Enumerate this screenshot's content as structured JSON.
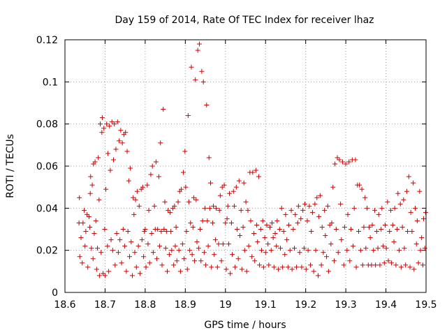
{
  "chart_data": {
    "type": "scatter",
    "title": "Day 159 of 2014, Rate Of TEC Index for receiver lhaz",
    "xlabel": "GPS time / hours",
    "ylabel": "ROTI / TECUs",
    "xlim": [
      18.6,
      19.5
    ],
    "ylim": [
      0,
      0.12
    ],
    "x_ticks": [
      "18.6",
      "18.7",
      "18.8",
      "18.9",
      "19",
      "19.1",
      "19.2",
      "19.3",
      "19.4",
      "19.5"
    ],
    "y_ticks": [
      "0",
      "0.02",
      "0.04",
      "0.06",
      "0.08",
      "0.1",
      "0.12"
    ],
    "grid": true,
    "marker": "+",
    "color": "#cc0000",
    "points": [
      [
        18.635,
        0.033
      ],
      [
        18.636,
        0.045
      ],
      [
        18.637,
        0.017
      ],
      [
        18.64,
        0.026
      ],
      [
        18.643,
        0.014
      ],
      [
        18.645,
        0.033
      ],
      [
        18.648,
        0.039
      ],
      [
        18.65,
        0.022
      ],
      [
        18.652,
        0.029
      ],
      [
        18.655,
        0.037
      ],
      [
        18.657,
        0.012
      ],
      [
        18.66,
        0.036
      ],
      [
        18.662,
        0.031
      ],
      [
        18.663,
        0.047
      ],
      [
        18.664,
        0.055
      ],
      [
        18.666,
        0.021
      ],
      [
        18.668,
        0.051
      ],
      [
        18.67,
        0.016
      ],
      [
        18.671,
        0.061
      ],
      [
        18.673,
        0.028
      ],
      [
        18.675,
        0.062
      ],
      [
        18.677,
        0.034
      ],
      [
        18.679,
        0.011
      ],
      [
        18.681,
        0.021
      ],
      [
        18.683,
        0.064
      ],
      [
        18.685,
        0.044
      ],
      [
        18.686,
        0.008
      ],
      [
        18.688,
        0.08
      ],
      [
        18.69,
        0.019
      ],
      [
        18.692,
        0.076
      ],
      [
        18.693,
        0.083
      ],
      [
        18.695,
        0.009
      ],
      [
        18.697,
        0.078
      ],
      [
        18.699,
        0.03
      ],
      [
        18.7,
        0.008
      ],
      [
        18.702,
        0.049
      ],
      [
        18.704,
        0.08
      ],
      [
        18.706,
        0.022
      ],
      [
        18.707,
        0.066
      ],
      [
        18.709,
        0.01
      ],
      [
        18.711,
        0.079
      ],
      [
        18.713,
        0.058
      ],
      [
        18.715,
        0.025
      ],
      [
        18.717,
        0.081
      ],
      [
        18.719,
        0.02
      ],
      [
        18.721,
        0.063
      ],
      [
        18.723,
        0.08
      ],
      [
        18.725,
        0.013
      ],
      [
        18.727,
        0.068
      ],
      [
        18.729,
        0.028
      ],
      [
        18.731,
        0.081
      ],
      [
        18.733,
        0.019
      ],
      [
        18.735,
        0.072
      ],
      [
        18.737,
        0.025
      ],
      [
        18.739,
        0.077
      ],
      [
        18.741,
        0.014
      ],
      [
        18.743,
        0.071
      ],
      [
        18.745,
        0.03
      ],
      [
        18.747,
        0.075
      ],
      [
        18.749,
        0.022
      ],
      [
        18.751,
        0.076
      ],
      [
        18.753,
        0.01
      ],
      [
        18.755,
        0.067
      ],
      [
        18.757,
        0.029
      ],
      [
        18.759,
        0.053
      ],
      [
        18.761,
        0.017
      ],
      [
        18.763,
        0.059
      ],
      [
        18.765,
        0.024
      ],
      [
        18.768,
        0.008
      ],
      [
        18.77,
        0.045
      ],
      [
        18.772,
        0.037
      ],
      [
        18.774,
        0.019
      ],
      [
        18.776,
        0.044
      ],
      [
        18.778,
        0.012
      ],
      [
        18.78,
        0.048
      ],
      [
        18.783,
        0.022
      ],
      [
        18.785,
        0.041
      ],
      [
        18.787,
        0.009
      ],
      [
        18.79,
        0.049
      ],
      [
        18.792,
        0.025
      ],
      [
        18.794,
        0.05
      ],
      [
        18.796,
        0.017
      ],
      [
        18.798,
        0.029
      ],
      [
        18.8,
        0.03
      ],
      [
        18.802,
        0.012
      ],
      [
        18.805,
        0.051
      ],
      [
        18.807,
        0.023
      ],
      [
        18.809,
        0.039
      ],
      [
        18.811,
        0.014
      ],
      [
        18.814,
        0.056
      ],
      [
        18.816,
        0.028
      ],
      [
        18.818,
        0.06
      ],
      [
        18.82,
        0.019
      ],
      [
        18.823,
        0.041
      ],
      [
        18.825,
        0.03
      ],
      [
        18.827,
        0.062
      ],
      [
        18.829,
        0.016
      ],
      [
        18.831,
        0.03
      ],
      [
        18.834,
        0.055
      ],
      [
        18.836,
        0.022
      ],
      [
        18.838,
        0.071
      ],
      [
        18.84,
        0.029
      ],
      [
        18.842,
        0.013
      ],
      [
        18.845,
        0.087
      ],
      [
        18.847,
        0.03
      ],
      [
        18.849,
        0.043
      ],
      [
        18.851,
        0.021
      ],
      [
        18.853,
        0.029
      ],
      [
        18.855,
        0.01
      ],
      [
        18.857,
        0.039
      ],
      [
        18.86,
        0.018
      ],
      [
        18.862,
        0.038
      ],
      [
        18.864,
        0.029
      ],
      [
        18.866,
        0.02
      ],
      [
        18.869,
        0.04
      ],
      [
        18.871,
        0.013
      ],
      [
        18.873,
        0.041
      ],
      [
        18.875,
        0.022
      ],
      [
        18.877,
        0.031
      ],
      [
        18.879,
        0.015
      ],
      [
        18.882,
        0.043
      ],
      [
        18.884,
        0.02
      ],
      [
        18.886,
        0.048
      ],
      [
        18.888,
        0.01
      ],
      [
        18.89,
        0.049
      ],
      [
        18.893,
        0.023
      ],
      [
        18.895,
        0.057
      ],
      [
        18.897,
        0.016
      ],
      [
        18.899,
        0.067
      ],
      [
        18.901,
        0.05
      ],
      [
        18.903,
        0.029
      ],
      [
        18.905,
        0.011
      ],
      [
        18.907,
        0.084
      ],
      [
        18.909,
        0.043
      ],
      [
        18.911,
        0.02
      ],
      [
        18.913,
        0.033
      ],
      [
        18.915,
        0.107
      ],
      [
        18.917,
        0.018
      ],
      [
        18.919,
        0.031
      ],
      [
        18.921,
        0.045
      ],
      [
        18.923,
        0.015
      ],
      [
        18.925,
        0.101
      ],
      [
        18.927,
        0.044
      ],
      [
        18.929,
        0.024
      ],
      [
        18.931,
        0.115
      ],
      [
        18.933,
        0.021
      ],
      [
        18.935,
        0.118
      ],
      [
        18.937,
        0.03
      ],
      [
        18.939,
        0.015
      ],
      [
        18.941,
        0.105
      ],
      [
        18.943,
        0.034
      ],
      [
        18.945,
        0.1
      ],
      [
        18.947,
        0.019
      ],
      [
        18.949,
        0.04
      ],
      [
        18.951,
        0.013
      ],
      [
        18.953,
        0.089
      ],
      [
        18.955,
        0.034
      ],
      [
        18.957,
        0.022
      ],
      [
        18.959,
        0.064
      ],
      [
        18.961,
        0.04
      ],
      [
        18.963,
        0.052
      ],
      [
        18.965,
        0.012
      ],
      [
        18.968,
        0.033
      ],
      [
        18.97,
        0.041
      ],
      [
        18.972,
        0.018
      ],
      [
        18.975,
        0.025
      ],
      [
        18.977,
        0.04
      ],
      [
        18.98,
        0.012
      ],
      [
        18.983,
        0.023
      ],
      [
        18.985,
        0.039
      ],
      [
        18.987,
        0.046
      ],
      [
        18.99,
        0.015
      ],
      [
        18.992,
        0.05
      ],
      [
        18.994,
        0.023
      ],
      [
        18.997,
        0.051
      ],
      [
        19.0,
        0.033
      ],
      [
        19.002,
        0.011
      ],
      [
        19.004,
        0.035
      ],
      [
        19.006,
        0.041
      ],
      [
        19.008,
        0.023
      ],
      [
        19.01,
        0.047
      ],
      [
        19.012,
        0.009
      ],
      [
        19.015,
        0.033
      ],
      [
        19.017,
        0.018
      ],
      [
        19.02,
        0.048
      ],
      [
        19.022,
        0.041
      ],
      [
        19.024,
        0.012
      ],
      [
        19.027,
        0.05
      ],
      [
        19.029,
        0.03
      ],
      [
        19.032,
        0.016
      ],
      [
        19.034,
        0.053
      ],
      [
        19.036,
        0.027
      ],
      [
        19.039,
        0.039
      ],
      [
        19.041,
        0.011
      ],
      [
        19.044,
        0.031
      ],
      [
        19.046,
        0.052
      ],
      [
        19.048,
        0.02
      ],
      [
        19.051,
        0.043
      ],
      [
        19.053,
        0.01
      ],
      [
        19.056,
        0.039
      ],
      [
        19.058,
        0.022
      ],
      [
        19.061,
        0.057
      ],
      [
        19.063,
        0.034
      ],
      [
        19.066,
        0.017
      ],
      [
        19.068,
        0.057
      ],
      [
        19.071,
        0.028
      ],
      [
        19.073,
        0.015
      ],
      [
        19.076,
        0.058
      ],
      [
        19.078,
        0.032
      ],
      [
        19.08,
        0.024
      ],
      [
        19.083,
        0.055
      ],
      [
        19.085,
        0.013
      ],
      [
        19.088,
        0.03
      ],
      [
        19.09,
        0.02
      ],
      [
        19.093,
        0.034
      ],
      [
        19.095,
        0.012
      ],
      [
        19.098,
        0.026
      ],
      [
        19.1,
        0.019
      ],
      [
        19.103,
        0.032
      ],
      [
        19.106,
        0.023
      ],
      [
        19.108,
        0.013
      ],
      [
        19.111,
        0.031
      ],
      [
        19.114,
        0.02
      ],
      [
        19.116,
        0.033
      ],
      [
        19.119,
        0.026
      ],
      [
        19.121,
        0.012
      ],
      [
        19.124,
        0.028
      ],
      [
        19.127,
        0.022
      ],
      [
        19.129,
        0.034
      ],
      [
        19.132,
        0.011
      ],
      [
        19.135,
        0.03
      ],
      [
        19.137,
        0.021
      ],
      [
        19.14,
        0.04
      ],
      [
        19.142,
        0.012
      ],
      [
        19.145,
        0.029
      ],
      [
        19.148,
        0.018
      ],
      [
        19.15,
        0.037
      ],
      [
        19.153,
        0.025
      ],
      [
        19.156,
        0.012
      ],
      [
        19.158,
        0.032
      ],
      [
        19.161,
        0.02
      ],
      [
        19.164,
        0.039
      ],
      [
        19.166,
        0.011
      ],
      [
        19.169,
        0.03
      ],
      [
        19.172,
        0.021
      ],
      [
        19.174,
        0.037
      ],
      [
        19.177,
        0.012
      ],
      [
        19.18,
        0.033
      ],
      [
        19.182,
        0.041
      ],
      [
        19.185,
        0.019
      ],
      [
        19.188,
        0.035
      ],
      [
        19.19,
        0.012
      ],
      [
        19.193,
        0.039
      ],
      [
        19.196,
        0.021
      ],
      [
        19.198,
        0.042
      ],
      [
        19.201,
        0.011
      ],
      [
        19.204,
        0.034
      ],
      [
        19.206,
        0.02
      ],
      [
        19.209,
        0.041
      ],
      [
        19.212,
        0.013
      ],
      [
        19.214,
        0.029
      ],
      [
        19.217,
        0.038
      ],
      [
        19.22,
        0.01
      ],
      [
        19.223,
        0.042
      ],
      [
        19.225,
        0.02
      ],
      [
        19.228,
        0.045
      ],
      [
        19.231,
        0.008
      ],
      [
        19.233,
        0.036
      ],
      [
        19.236,
        0.046
      ],
      [
        19.239,
        0.013
      ],
      [
        19.241,
        0.031
      ],
      [
        19.244,
        0.019
      ],
      [
        19.247,
        0.039
      ],
      [
        19.249,
        0.027
      ],
      [
        19.252,
        0.017
      ],
      [
        19.255,
        0.041
      ],
      [
        19.257,
        0.01
      ],
      [
        19.26,
        0.032
      ],
      [
        19.263,
        0.023
      ],
      [
        19.265,
        0.033
      ],
      [
        19.268,
        0.05
      ],
      [
        19.271,
        0.015
      ],
      [
        19.273,
        0.061
      ],
      [
        19.276,
        0.03
      ],
      [
        19.279,
        0.064
      ],
      [
        19.281,
        0.019
      ],
      [
        19.284,
        0.063
      ],
      [
        19.287,
        0.042
      ],
      [
        19.289,
        0.025
      ],
      [
        19.292,
        0.062
      ],
      [
        19.295,
        0.013
      ],
      [
        19.297,
        0.031
      ],
      [
        19.3,
        0.061
      ],
      [
        19.303,
        0.02
      ],
      [
        19.305,
        0.037
      ],
      [
        19.308,
        0.062
      ],
      [
        19.31,
        0.015
      ],
      [
        19.313,
        0.03
      ],
      [
        19.316,
        0.063
      ],
      [
        19.318,
        0.022
      ],
      [
        19.321,
        0.04
      ],
      [
        19.324,
        0.063
      ],
      [
        19.326,
        0.012
      ],
      [
        19.329,
        0.051
      ],
      [
        19.332,
        0.029
      ],
      [
        19.334,
        0.051
      ],
      [
        19.337,
        0.02
      ],
      [
        19.34,
        0.049
      ],
      [
        19.342,
        0.013
      ],
      [
        19.345,
        0.031
      ],
      [
        19.348,
        0.045
      ],
      [
        19.35,
        0.021
      ],
      [
        19.353,
        0.04
      ],
      [
        19.356,
        0.013
      ],
      [
        19.358,
        0.031
      ],
      [
        19.361,
        0.026
      ],
      [
        19.364,
        0.013
      ],
      [
        19.366,
        0.032
      ],
      [
        19.369,
        0.02
      ],
      [
        19.372,
        0.039
      ],
      [
        19.374,
        0.013
      ],
      [
        19.377,
        0.029
      ],
      [
        19.38,
        0.021
      ],
      [
        19.382,
        0.037
      ],
      [
        19.385,
        0.013
      ],
      [
        19.388,
        0.03
      ],
      [
        19.39,
        0.04
      ],
      [
        19.393,
        0.022
      ],
      [
        19.396,
        0.014
      ],
      [
        19.398,
        0.032
      ],
      [
        19.401,
        0.021
      ],
      [
        19.404,
        0.043
      ],
      [
        19.406,
        0.015
      ],
      [
        19.409,
        0.029
      ],
      [
        19.412,
        0.039
      ],
      [
        19.414,
        0.014
      ],
      [
        19.417,
        0.032
      ],
      [
        19.42,
        0.024
      ],
      [
        19.422,
        0.04
      ],
      [
        19.425,
        0.013
      ],
      [
        19.428,
        0.03
      ],
      [
        19.43,
        0.047
      ],
      [
        19.433,
        0.02
      ],
      [
        19.436,
        0.042
      ],
      [
        19.438,
        0.012
      ],
      [
        19.441,
        0.031
      ],
      [
        19.444,
        0.044
      ],
      [
        19.446,
        0.021
      ],
      [
        19.449,
        0.013
      ],
      [
        19.452,
        0.048
      ],
      [
        19.454,
        0.029
      ],
      [
        19.457,
        0.055
      ],
      [
        19.46,
        0.012
      ],
      [
        19.462,
        0.038
      ],
      [
        19.465,
        0.029
      ],
      [
        19.468,
        0.052
      ],
      [
        19.47,
        0.011
      ],
      [
        19.473,
        0.04
      ],
      [
        19.476,
        0.023
      ],
      [
        19.478,
        0.034
      ],
      [
        19.481,
        0.014
      ],
      [
        19.484,
        0.048
      ],
      [
        19.486,
        0.02
      ],
      [
        19.489,
        0.026
      ],
      [
        19.492,
        0.013
      ],
      [
        19.494,
        0.035
      ],
      [
        19.497,
        0.021
      ],
      [
        19.499,
        0.038
      ]
    ]
  }
}
